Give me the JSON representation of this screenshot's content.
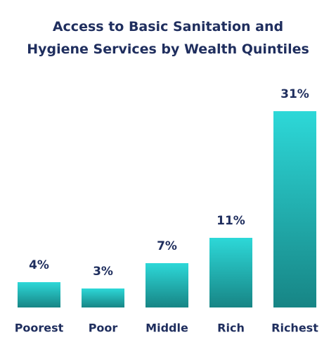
{
  "chart_data": {
    "type": "bar",
    "title": "Access to Basic Sanitation and\nHygiene Services by Wealth Quintiles",
    "categories": [
      "Poorest",
      "Poor",
      "Middle",
      "Rich",
      "Richest"
    ],
    "values": [
      4,
      3,
      7,
      11,
      31
    ],
    "value_labels": [
      "4%",
      "3%",
      "7%",
      "11%",
      "31%"
    ],
    "color": [
      "#2dd8d8",
      "#178585"
    ]
  }
}
